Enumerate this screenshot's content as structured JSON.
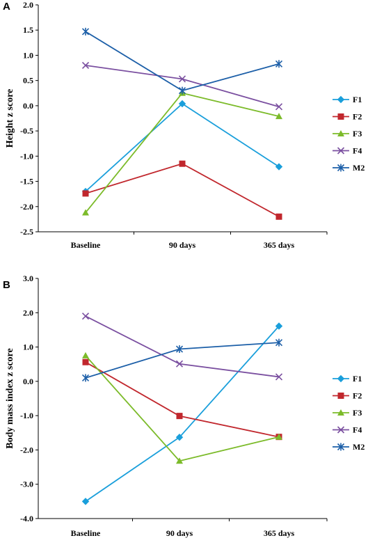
{
  "colors": {
    "F1": "#1a9fdb",
    "F2": "#c1272d",
    "F3": "#7cbb2a",
    "F4": "#7a4fa0",
    "M2": "#1c5fa8"
  },
  "chart_data": [
    {
      "type": "line",
      "panel": "A",
      "ylabel": "Height z score",
      "xlabel": "",
      "categories": [
        "Baseline",
        "90 days",
        "365 days"
      ],
      "ylim": [
        -2.5,
        2.0
      ],
      "yticks": [
        2.0,
        1.5,
        1.0,
        0.5,
        0.0,
        -0.5,
        -1.0,
        -1.5,
        -2.0,
        -2.5
      ],
      "ytick_labels": [
        "2.0",
        "1.5",
        "1.0",
        "0.5",
        "0.0",
        "-0.5",
        "-1.0",
        "-1.5",
        "-2.0",
        "-2.5"
      ],
      "grid": false,
      "legend_position": "right",
      "series": [
        {
          "name": "F1",
          "marker": "diamond",
          "values": [
            -1.7,
            0.04,
            -1.21
          ]
        },
        {
          "name": "F2",
          "marker": "square",
          "values": [
            -1.74,
            -1.15,
            -2.2
          ]
        },
        {
          "name": "F3",
          "marker": "triangle",
          "values": [
            -2.12,
            0.25,
            -0.21
          ]
        },
        {
          "name": "F4",
          "marker": "x",
          "values": [
            0.8,
            0.53,
            -0.02
          ]
        },
        {
          "name": "M2",
          "marker": "asterisk",
          "values": [
            1.47,
            0.3,
            0.83
          ]
        }
      ]
    },
    {
      "type": "line",
      "panel": "B",
      "ylabel": "Body mass index z score",
      "xlabel": "",
      "categories": [
        "Baseline",
        "90 days",
        "365 days"
      ],
      "ylim": [
        -4.0,
        3.0
      ],
      "yticks": [
        3.0,
        2.0,
        1.0,
        0.0,
        -1.0,
        -2.0,
        -3.0,
        -4.0
      ],
      "ytick_labels": [
        "3.0",
        "2.0",
        "1.0",
        "0.0",
        "-1.0",
        "-2.0",
        "-3.0",
        "-4.0"
      ],
      "grid": false,
      "legend_position": "right",
      "series": [
        {
          "name": "F1",
          "marker": "diamond",
          "values": [
            -3.5,
            -1.63,
            1.61
          ]
        },
        {
          "name": "F2",
          "marker": "square",
          "values": [
            0.56,
            -1.01,
            -1.62
          ]
        },
        {
          "name": "F3",
          "marker": "triangle",
          "values": [
            0.75,
            -2.32,
            -1.62
          ]
        },
        {
          "name": "F4",
          "marker": "x",
          "values": [
            1.9,
            0.51,
            0.13
          ]
        },
        {
          "name": "M2",
          "marker": "asterisk",
          "values": [
            0.1,
            0.94,
            1.13
          ]
        }
      ]
    }
  ]
}
